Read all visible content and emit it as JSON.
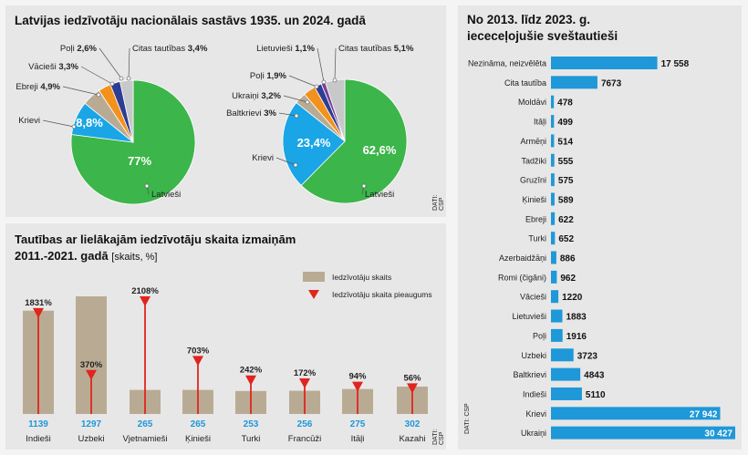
{
  "colors": {
    "green": "#3cb54a",
    "blue": "#1aa5e6",
    "tan": "#b9ab93",
    "orange": "#f2921c",
    "navy": "#2d3d94",
    "purple": "#7b3f98",
    "grey": "#c7c8ca",
    "red": "#e1241d",
    "bar": "#1e98d8"
  },
  "top_panel": {
    "title": "Latvijas iedzīvotāju nacionālais sastāvs 1935. un 2024. gadā",
    "source": "DATI: CSP"
  },
  "bottom_panel": {
    "title_line1": "Tautības ar lielākajām iedzīvotāju skaita izmaiņām",
    "title_line2": "2011.-2021. gadā",
    "subtitle": "[skaits, %]",
    "source": "DATI: CSP"
  },
  "right_panel": {
    "title_line1": "No 2013. līdz 2023. g.",
    "title_line2": "iececeļojušie sveštautieši",
    "source": "DATI: CSP"
  },
  "chart_data": [
    {
      "type": "pie",
      "year": "1935",
      "slices": [
        {
          "label": "Latvieši",
          "value": 77,
          "display": "77%",
          "color": "#3cb54a"
        },
        {
          "label": "Krievi",
          "value": 8.8,
          "display": "8,8%",
          "color": "#1aa5e6"
        },
        {
          "label": "Ebreji",
          "value": 4.9,
          "display": "4,9%",
          "color": "#b9ab93"
        },
        {
          "label": "Vācieši",
          "value": 3.3,
          "display": "3,3%",
          "color": "#f2921c"
        },
        {
          "label": "Poļi",
          "value": 2.6,
          "display": "2,6%",
          "color": "#2d3d94"
        },
        {
          "label": "Citas tautības",
          "value": 3.4,
          "display": "3,4%",
          "color": "#c7c8ca"
        }
      ]
    },
    {
      "type": "pie",
      "year": "2024",
      "slices": [
        {
          "label": "Latvieši",
          "value": 62.6,
          "display": "62,6%",
          "color": "#3cb54a"
        },
        {
          "label": "Krievi",
          "value": 23.4,
          "display": "23,4%",
          "color": "#1aa5e6"
        },
        {
          "label": "Baltkrievi",
          "value": 3,
          "display": "3%",
          "color": "#b9ab93"
        },
        {
          "label": "Ukraiņi",
          "value": 3.2,
          "display": "3,2%",
          "color": "#f2921c"
        },
        {
          "label": "Poļi",
          "value": 1.9,
          "display": "1,9%",
          "color": "#2d3d94"
        },
        {
          "label": "Lietuvieši",
          "value": 1.1,
          "display": "1,1%",
          "color": "#7b3f98"
        },
        {
          "label": "Citas tautības",
          "value": 5.1,
          "display": "5,1%",
          "color": "#c7c8ca"
        }
      ]
    },
    {
      "type": "bar",
      "legend": [
        "Iedzīvotāju skaits",
        "Iedzīvotāju skaita pieaugums"
      ],
      "categories": [
        "Indieši",
        "Uzbeki",
        "Vjetnamieši",
        "Ķinieši",
        "Turki",
        "Francūži",
        "Itāļi",
        "Kazahi"
      ],
      "series": [
        {
          "name": "Iedzīvotāju skaits",
          "values": [
            1139,
            1297,
            265,
            265,
            253,
            256,
            275,
            302
          ]
        },
        {
          "name": "Iedzīvotāju skaita pieaugums",
          "values": [
            1831,
            370,
            2108,
            703,
            242,
            172,
            94,
            56
          ],
          "labels": [
            "1831%",
            "370%",
            "2108%",
            "703%",
            "242%",
            "172%",
            "94%",
            "56%"
          ]
        }
      ]
    },
    {
      "type": "bar",
      "orientation": "horizontal",
      "categories": [
        "Nezināma, neizvēlēta",
        "Cita tautība",
        "Moldāvi",
        "Itāļi",
        "Armēņi",
        "Tadžiki",
        "Gruzīni",
        "Ķinieši",
        "Ebreji",
        "Turki",
        "Azerbaidžāņi",
        "Romi (čigāni)",
        "Vācieši",
        "Lietuvieši",
        "Poļi",
        "Uzbeki",
        "Baltkrievi",
        "Indieši",
        "Krievi",
        "Ukraiņi"
      ],
      "values": [
        17558,
        7673,
        478,
        499,
        514,
        555,
        575,
        589,
        622,
        652,
        886,
        962,
        1220,
        1883,
        1916,
        3723,
        4843,
        5110,
        27942,
        30427
      ],
      "labels": [
        "17 558",
        "7673",
        "478",
        "499",
        "514",
        "555",
        "575",
        "589",
        "622",
        "652",
        "886",
        "962",
        "1220",
        "1883",
        "1916",
        "3723",
        "4843",
        "5110",
        "27 942",
        "30 427"
      ],
      "xlim": [
        0,
        30427
      ]
    }
  ]
}
